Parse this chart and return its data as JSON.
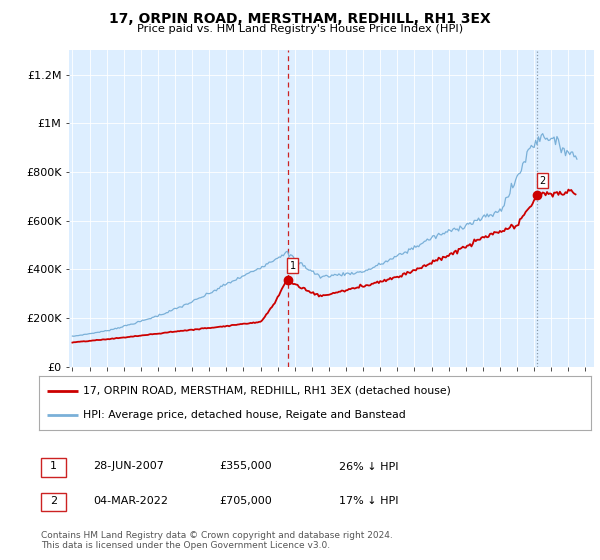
{
  "title": "17, ORPIN ROAD, MERSTHAM, REDHILL, RH1 3EX",
  "subtitle": "Price paid vs. HM Land Registry's House Price Index (HPI)",
  "legend_line1": "17, ORPIN ROAD, MERSTHAM, REDHILL, RH1 3EX (detached house)",
  "legend_line2": "HPI: Average price, detached house, Reigate and Banstead",
  "transaction1_label": "1",
  "transaction1_date": "28-JUN-2007",
  "transaction1_price": "£355,000",
  "transaction1_hpi": "26% ↓ HPI",
  "transaction2_label": "2",
  "transaction2_date": "04-MAR-2022",
  "transaction2_price": "£705,000",
  "transaction2_hpi": "17% ↓ HPI",
  "footer": "Contains HM Land Registry data © Crown copyright and database right 2024.\nThis data is licensed under the Open Government Licence v3.0.",
  "plot_bg_color": "#ddeeff",
  "line_color_property": "#cc0000",
  "line_color_hpi": "#7ab0d8",
  "marker1_x": 2007.58,
  "marker1_y": 355000,
  "marker2_x": 2022.17,
  "marker2_y": 705000,
  "ylim": [
    0,
    1300000
  ],
  "xlim_start": 1994.8,
  "xlim_end": 2025.5,
  "yticks": [
    0,
    200000,
    400000,
    600000,
    800000,
    1000000,
    1200000
  ],
  "ytick_labels": [
    "£0",
    "£200K",
    "£400K",
    "£600K",
    "£800K",
    "£1M",
    "£1.2M"
  ],
  "xticks": [
    1995,
    1996,
    1997,
    1998,
    1999,
    2000,
    2001,
    2002,
    2003,
    2004,
    2005,
    2006,
    2007,
    2008,
    2009,
    2010,
    2011,
    2012,
    2013,
    2014,
    2015,
    2016,
    2017,
    2018,
    2019,
    2020,
    2021,
    2022,
    2023,
    2024,
    2025
  ]
}
